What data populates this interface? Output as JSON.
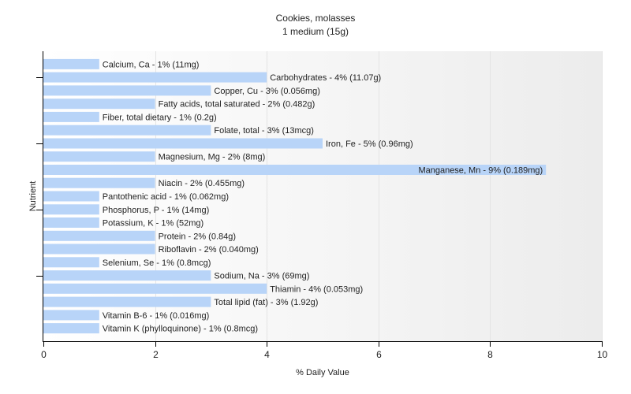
{
  "chart_data": {
    "type": "bar",
    "orientation": "horizontal",
    "title": "Cookies, molasses",
    "subtitle": "1 medium (15g)",
    "xlabel": "% Daily Value",
    "ylabel": "Nutrient",
    "xlim": [
      0,
      10
    ],
    "xticks": [
      "0",
      "2",
      "4",
      "6",
      "8",
      "10"
    ],
    "bar_color": "#b8d4f8",
    "grid": "vertical",
    "categories": [
      "Calcium, Ca",
      "Carbohydrates",
      "Copper, Cu",
      "Fatty acids, total saturated",
      "Fiber, total dietary",
      "Folate, total",
      "Iron, Fe",
      "Magnesium, Mg",
      "Manganese, Mn",
      "Niacin",
      "Pantothenic acid",
      "Phosphorus, P",
      "Potassium, K",
      "Protein",
      "Riboflavin",
      "Selenium, Se",
      "Sodium, Na",
      "Thiamin",
      "Total lipid (fat)",
      "Vitamin B-6",
      "Vitamin K (phylloquinone)"
    ],
    "values": [
      1,
      4,
      3,
      2,
      1,
      3,
      5,
      2,
      9,
      2,
      1,
      1,
      1,
      2,
      2,
      1,
      3,
      4,
      3,
      1,
      1
    ],
    "labels": [
      "Calcium, Ca - 1% (11mg)",
      "Carbohydrates - 4% (11.07g)",
      "Copper, Cu - 3% (0.056mg)",
      "Fatty acids, total saturated - 2% (0.482g)",
      "Fiber, total dietary - 1% (0.2g)",
      "Folate, total - 3% (13mcg)",
      "Iron, Fe - 5% (0.96mg)",
      "Magnesium, Mg - 2% (8mg)",
      "Manganese, Mn - 9% (0.189mg)",
      "Niacin - 2% (0.455mg)",
      "Pantothenic acid - 1% (0.062mg)",
      "Phosphorus, P - 1% (14mg)",
      "Potassium, K - 1% (52mg)",
      "Protein - 2% (0.84g)",
      "Riboflavin - 2% (0.040mg)",
      "Selenium, Se - 1% (0.8mcg)",
      "Sodium, Na - 3% (69mg)",
      "Thiamin - 4% (0.053mg)",
      "Total lipid (fat) - 3% (1.92g)",
      "Vitamin B-6 - 1% (0.016mg)",
      "Vitamin K (phylloquinone) - 1% (0.8mcg)"
    ]
  }
}
